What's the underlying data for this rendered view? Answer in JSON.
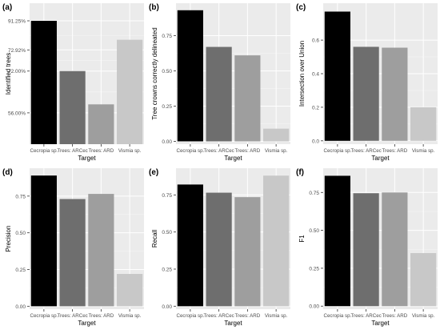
{
  "chart_data": [
    {
      "type": "bar",
      "panel_label": "(a)",
      "ylabel": "Identified trees",
      "xlabel": "Target",
      "categories": [
        "Cecropia sp.",
        "Trees: ARCec",
        "Trees: ARD",
        "Vismia sp."
      ],
      "values": [
        0.9125,
        0.72,
        0.5925,
        0.84
      ],
      "ylim": [
        0.44,
        0.98
      ],
      "yticks": [
        0.56,
        0.72,
        0.7292,
        0.9125
      ],
      "ytick_labels": [
        "56.00%",
        "72.00%",
        "72.92%",
        "91.25%"
      ],
      "yticks_display": [
        0.56,
        0.72,
        0.8011,
        0.9125
      ],
      "colors": [
        "#000000",
        "#6e6e6e",
        "#9e9e9e",
        "#c8c8c8"
      ],
      "grid": true
    },
    {
      "type": "bar",
      "panel_label": "(b)",
      "ylabel": "Tree crowns correctly delineated",
      "xlabel": "Target",
      "categories": [
        "Cecropia sp.",
        "Trees: ARCec",
        "Trees: ARD",
        "Vismia sp."
      ],
      "values": [
        0.93,
        0.67,
        0.61,
        0.09
      ],
      "ylim": [
        -0.02,
        0.98
      ],
      "yticks": [
        0.0,
        0.25,
        0.5,
        0.75
      ],
      "ytick_labels": [
        "0.00",
        "0.25",
        "0.50",
        "0.75"
      ],
      "colors": [
        "#000000",
        "#6e6e6e",
        "#9e9e9e",
        "#c8c8c8"
      ],
      "grid": true
    },
    {
      "type": "bar",
      "panel_label": "(c)",
      "ylabel": "Intersection over Union",
      "xlabel": "Target",
      "categories": [
        "Cecropia sp.",
        "Trees: ARCec",
        "Trees: ARD",
        "Vismia sp."
      ],
      "values": [
        0.77,
        0.56,
        0.555,
        0.2
      ],
      "ylim": [
        -0.02,
        0.82
      ],
      "yticks": [
        0.0,
        0.2,
        0.4,
        0.6
      ],
      "ytick_labels": [
        "0.0",
        "0.2",
        "0.4",
        "0.6"
      ],
      "colors": [
        "#000000",
        "#6e6e6e",
        "#9e9e9e",
        "#c8c8c8"
      ],
      "grid": true
    },
    {
      "type": "bar",
      "panel_label": "(d)",
      "ylabel": "Precision",
      "xlabel": "Target",
      "categories": [
        "Cecropia sp.",
        "Trees: ARCec",
        "Trees: ARD",
        "Vismia sp."
      ],
      "values": [
        0.89,
        0.73,
        0.765,
        0.22
      ],
      "ylim": [
        -0.02,
        0.94
      ],
      "yticks": [
        0.0,
        0.25,
        0.5,
        0.75
      ],
      "ytick_labels": [
        "0.00",
        "0.25",
        "0.50",
        "0.75"
      ],
      "colors": [
        "#000000",
        "#6e6e6e",
        "#9e9e9e",
        "#c8c8c8"
      ],
      "grid": true
    },
    {
      "type": "bar",
      "panel_label": "(e)",
      "ylabel": "Recall",
      "xlabel": "Target",
      "categories": [
        "Cecropia sp.",
        "Trees: ARCec",
        "Trees: ARD",
        "Vismia sp."
      ],
      "values": [
        0.82,
        0.765,
        0.735,
        0.88
      ],
      "ylim": [
        -0.02,
        0.93
      ],
      "yticks": [
        0.0,
        0.25,
        0.5,
        0.75
      ],
      "ytick_labels": [
        "0.00",
        "0.25",
        "0.50",
        "0.75"
      ],
      "colors": [
        "#000000",
        "#6e6e6e",
        "#9e9e9e",
        "#c8c8c8"
      ],
      "grid": true
    },
    {
      "type": "bar",
      "panel_label": "(f)",
      "ylabel": "F1",
      "xlabel": "Target",
      "categories": [
        "Cecropia sp.",
        "Trees: ARCec",
        "Trees: ARD",
        "Vismia sp."
      ],
      "values": [
        0.86,
        0.745,
        0.75,
        0.35
      ],
      "ylim": [
        -0.02,
        0.91
      ],
      "yticks": [
        0.0,
        0.25,
        0.5,
        0.75
      ],
      "ytick_labels": [
        "0.00",
        "0.25",
        "0.50",
        "0.75"
      ],
      "colors": [
        "#000000",
        "#6e6e6e",
        "#9e9e9e",
        "#c8c8c8"
      ],
      "grid": true
    }
  ]
}
